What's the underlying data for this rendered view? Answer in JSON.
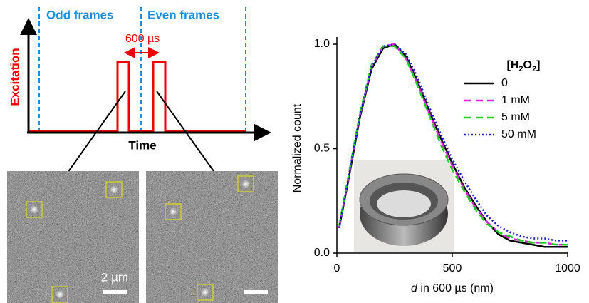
{
  "diagram": {
    "odd_frames": "Odd frames",
    "even_frames": "Even frames",
    "interval": "600 µs",
    "y_axis": "Excitation",
    "x_axis": "Time",
    "scale_bar": "2 µm"
  },
  "chart_data": {
    "type": "line",
    "ylabel": "Normalized count",
    "xlabel": [
      "d",
      " in 600 µs (nm)"
    ],
    "legend_title": [
      "[H",
      "2",
      "O",
      "2",
      "]"
    ],
    "x": [
      10,
      50,
      100,
      150,
      200,
      250,
      300,
      350,
      400,
      450,
      500,
      550,
      600,
      650,
      700,
      750,
      800,
      850,
      900,
      950,
      1000
    ],
    "series": [
      {
        "name": "0",
        "color": "#000000",
        "dash": "solid",
        "values": [
          0.12,
          0.35,
          0.65,
          0.88,
          0.98,
          1.0,
          0.94,
          0.82,
          0.68,
          0.55,
          0.43,
          0.32,
          0.23,
          0.15,
          0.09,
          0.06,
          0.05,
          0.04,
          0.03,
          0.03,
          0.03
        ]
      },
      {
        "name": "1 mM",
        "color": "#e020e0",
        "dash": "dashed",
        "values": [
          0.12,
          0.36,
          0.66,
          0.89,
          0.99,
          1.0,
          0.93,
          0.81,
          0.67,
          0.54,
          0.42,
          0.31,
          0.22,
          0.15,
          0.1,
          0.07,
          0.06,
          0.05,
          0.05,
          0.04,
          0.04
        ]
      },
      {
        "name": "5 mM",
        "color": "#22cc22",
        "dash": "dashed",
        "values": [
          0.13,
          0.37,
          0.67,
          0.9,
          0.99,
          0.99,
          0.93,
          0.8,
          0.66,
          0.52,
          0.4,
          0.3,
          0.21,
          0.14,
          0.1,
          0.08,
          0.06,
          0.05,
          0.05,
          0.04,
          0.04
        ]
      },
      {
        "name": "50 mM",
        "color": "#1a1acc",
        "dash": "dotted",
        "values": [
          0.12,
          0.36,
          0.66,
          0.89,
          0.99,
          1.0,
          0.95,
          0.84,
          0.7,
          0.57,
          0.45,
          0.35,
          0.26,
          0.18,
          0.13,
          0.1,
          0.08,
          0.07,
          0.07,
          0.06,
          0.06
        ]
      }
    ],
    "xlim": [
      0,
      1000
    ],
    "xticks": [
      0,
      500,
      1000
    ],
    "ylim": [
      0,
      1.0
    ],
    "yticks": [
      {
        "value": 0,
        "label": "0.0"
      },
      0.5,
      {
        "value": 1.0,
        "label": "1.0"
      }
    ],
    "grid": false,
    "legend": "upper right"
  }
}
